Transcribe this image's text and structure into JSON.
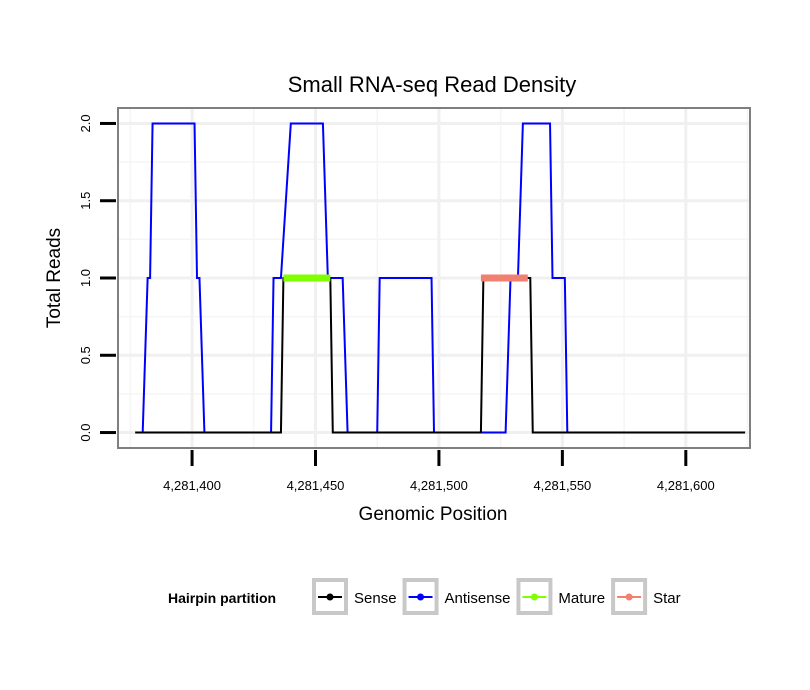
{
  "chart_data": {
    "type": "line",
    "title": "Small RNA-seq Read Density",
    "xlabel": "Genomic Position",
    "ylabel": "Total Reads",
    "xlim": [
      4281370,
      4281626
    ],
    "ylim": [
      -0.1,
      2.1
    ],
    "x_ticks": [
      4281400,
      4281450,
      4281500,
      4281550,
      4281600
    ],
    "x_tick_labels": [
      "4,281,400",
      "4,281,450",
      "4,281,500",
      "4,281,550",
      "4,281,600"
    ],
    "y_ticks": [
      0,
      0.5,
      1,
      1.5,
      2
    ],
    "y_tick_labels": [
      "0.0",
      "0.5",
      "1.0",
      "1.5",
      "2.0"
    ],
    "grid": true,
    "legend": {
      "title": "Hairpin partition",
      "position": "bottom",
      "entries": [
        "Sense",
        "Antisense",
        "Mature",
        "Star"
      ]
    },
    "series": [
      {
        "name": "Antisense",
        "color": "#0000FF",
        "points": [
          [
            4281377,
            0
          ],
          [
            4281380,
            0
          ],
          [
            4281382,
            1
          ],
          [
            4281383,
            1
          ],
          [
            4281384,
            2
          ],
          [
            4281401,
            2
          ],
          [
            4281402,
            1
          ],
          [
            4281403,
            1
          ],
          [
            4281405,
            0
          ],
          [
            4281432,
            0
          ],
          [
            4281433,
            1
          ],
          [
            4281436,
            1
          ],
          [
            4281440,
            2
          ],
          [
            4281453,
            2
          ],
          [
            4281455,
            1
          ],
          [
            4281461,
            1
          ],
          [
            4281463,
            0
          ],
          [
            4281475,
            0
          ],
          [
            4281476,
            1
          ],
          [
            4281497,
            1
          ],
          [
            4281498,
            0
          ],
          [
            4281527,
            0
          ],
          [
            4281529,
            1
          ],
          [
            4281532,
            1
          ],
          [
            4281534,
            2
          ],
          [
            4281545,
            2
          ],
          [
            4281546,
            1
          ],
          [
            4281551,
            1
          ],
          [
            4281552,
            0
          ],
          [
            4281624,
            0
          ]
        ]
      },
      {
        "name": "Sense",
        "color": "#000000",
        "points": [
          [
            4281377,
            0
          ],
          [
            4281436,
            0
          ],
          [
            4281437,
            1
          ],
          [
            4281456,
            1
          ],
          [
            4281457,
            0
          ],
          [
            4281517,
            0
          ],
          [
            4281518,
            1
          ],
          [
            4281537,
            1
          ],
          [
            4281538,
            0
          ],
          [
            4281624,
            0
          ]
        ]
      },
      {
        "name": "Mature",
        "color": "#7FFF00",
        "points": [
          [
            4281437,
            1
          ],
          [
            4281456,
            1
          ]
        ]
      },
      {
        "name": "Star",
        "color": "#F08070",
        "points": [
          [
            4281517,
            1
          ],
          [
            4281536,
            1
          ]
        ]
      }
    ]
  }
}
